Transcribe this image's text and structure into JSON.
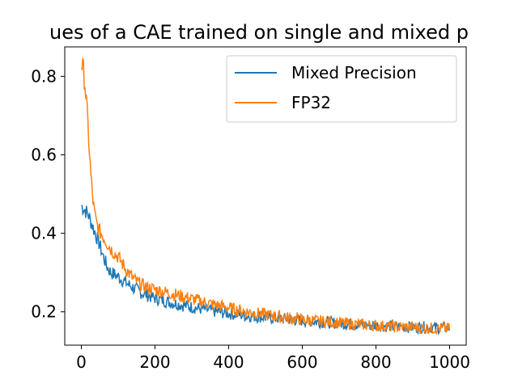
{
  "chart_data": {
    "type": "line",
    "title": "ues of a CAE trained on single and mixed p",
    "xlabel": "",
    "ylabel": "",
    "xlim": [
      -45,
      1045
    ],
    "ylim": [
      0.115,
      0.875
    ],
    "xticks": [
      0,
      200,
      400,
      600,
      800,
      1000
    ],
    "yticks": [
      0.2,
      0.4,
      0.6,
      0.8
    ],
    "xtick_labels": [
      "0",
      "200",
      "400",
      "600",
      "800",
      "1000"
    ],
    "ytick_labels": [
      "0.2",
      "0.4",
      "0.6",
      "0.8"
    ],
    "grid": false,
    "legend_position": "top-right",
    "series": [
      {
        "name": "Mixed Precision",
        "color": "#1f77b4",
        "x": [
          0,
          10,
          20,
          30,
          40,
          50,
          60,
          70,
          80,
          90,
          100,
          120,
          140,
          160,
          180,
          200,
          250,
          300,
          350,
          400,
          450,
          500,
          550,
          600,
          650,
          700,
          750,
          800,
          850,
          900,
          950,
          1000
        ],
        "values": [
          0.47,
          0.46,
          0.445,
          0.42,
          0.395,
          0.37,
          0.34,
          0.315,
          0.3,
          0.295,
          0.29,
          0.275,
          0.262,
          0.25,
          0.242,
          0.235,
          0.222,
          0.212,
          0.203,
          0.196,
          0.19,
          0.186,
          0.182,
          0.178,
          0.174,
          0.171,
          0.168,
          0.165,
          0.163,
          0.161,
          0.16,
          0.159
        ]
      },
      {
        "name": "FP32",
        "color": "#ff7f0e",
        "x": [
          0,
          5,
          10,
          15,
          20,
          25,
          30,
          35,
          40,
          45,
          50,
          60,
          70,
          80,
          90,
          100,
          120,
          140,
          160,
          180,
          200,
          250,
          300,
          350,
          400,
          450,
          500,
          550,
          600,
          650,
          700,
          750,
          800,
          850,
          900,
          950,
          1000
        ],
        "values": [
          0.835,
          0.82,
          0.78,
          0.72,
          0.64,
          0.56,
          0.5,
          0.455,
          0.43,
          0.415,
          0.405,
          0.39,
          0.375,
          0.36,
          0.35,
          0.34,
          0.31,
          0.285,
          0.27,
          0.262,
          0.257,
          0.245,
          0.233,
          0.221,
          0.21,
          0.2,
          0.193,
          0.186,
          0.18,
          0.176,
          0.172,
          0.168,
          0.165,
          0.162,
          0.16,
          0.158,
          0.157
        ]
      }
    ]
  }
}
